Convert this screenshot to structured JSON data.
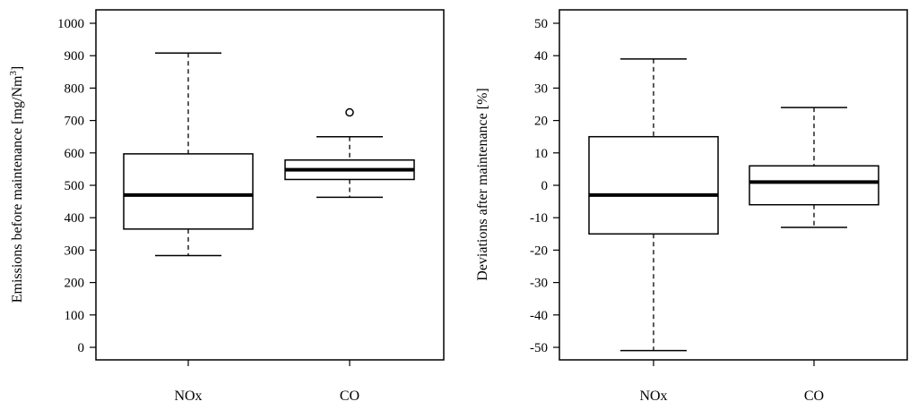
{
  "chart_data": [
    {
      "type": "box",
      "ylabel": "Emissions before maintenance [mg/Nm",
      "ylabel_sup": "3",
      "ylabel_end": "]",
      "categories": [
        "NOx",
        "CO"
      ],
      "ylim": [
        0,
        1000
      ],
      "yticks": [
        0,
        100,
        200,
        300,
        400,
        500,
        600,
        700,
        800,
        900,
        1000
      ],
      "boxes": [
        {
          "name": "NOx",
          "whisker_low": 283,
          "q1": 365,
          "median": 470,
          "q3": 597,
          "whisker_high": 908,
          "outliers": []
        },
        {
          "name": "CO",
          "whisker_low": 463,
          "q1": 518,
          "median": 548,
          "q3": 578,
          "whisker_high": 650,
          "outliers": [
            725
          ]
        }
      ]
    },
    {
      "type": "box",
      "ylabel": "Deviations after maintenance [%]",
      "ylabel_sup": "",
      "ylabel_end": "",
      "categories": [
        "NOx",
        "CO"
      ],
      "ylim": [
        -50,
        50
      ],
      "yticks": [
        -50,
        -40,
        -30,
        -20,
        -10,
        0,
        10,
        20,
        30,
        40,
        50
      ],
      "boxes": [
        {
          "name": "NOx",
          "whisker_low": -51,
          "q1": -15,
          "median": -3,
          "q3": 15,
          "whisker_high": 39,
          "outliers": []
        },
        {
          "name": "CO",
          "whisker_low": -13,
          "q1": -6,
          "median": 1,
          "q3": 6,
          "whisker_high": 24,
          "outliers": []
        }
      ]
    }
  ]
}
